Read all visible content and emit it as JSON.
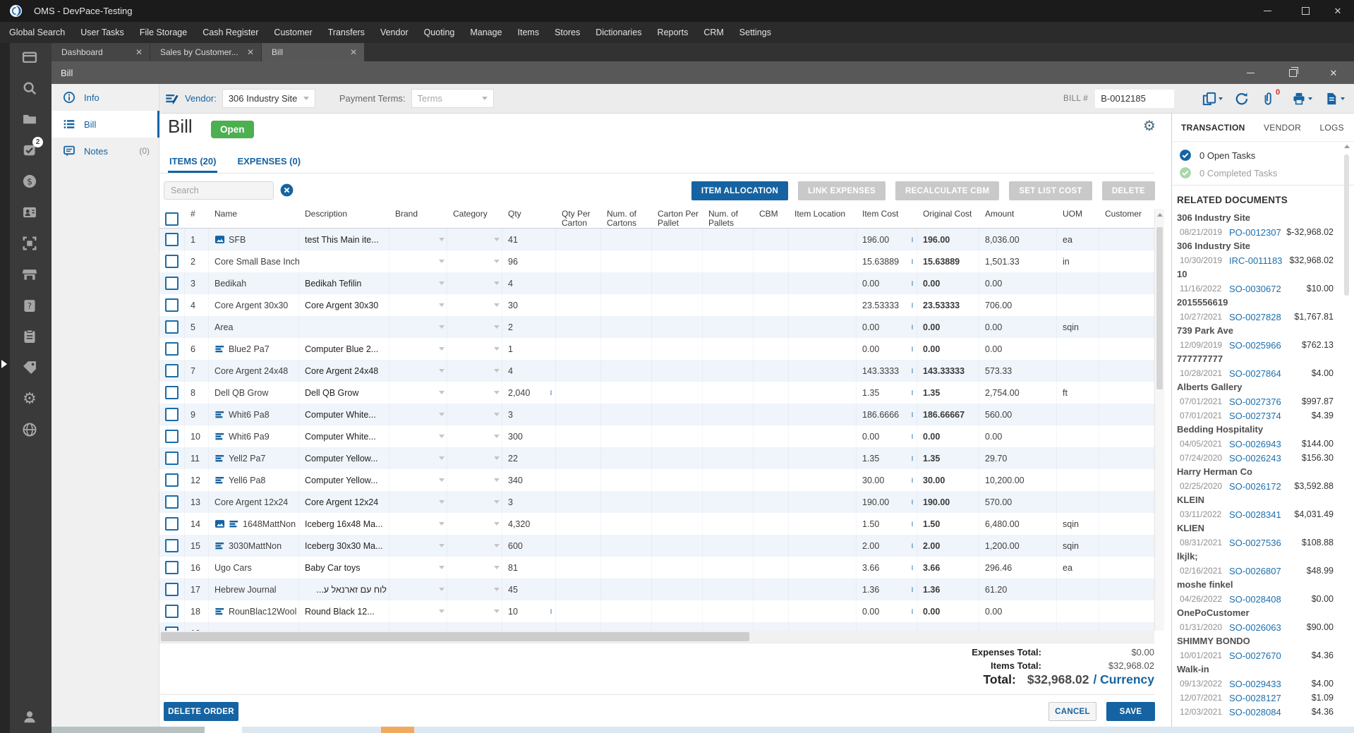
{
  "window": {
    "title": "OMS - DevPace-Testing"
  },
  "menu": [
    "Global Search",
    "User Tasks",
    "File Storage",
    "Cash Register",
    "Customer",
    "Transfers",
    "Vendor",
    "Quoting",
    "Manage",
    "Items",
    "Stores",
    "Dictionaries",
    "Reports",
    "CRM",
    "Settings"
  ],
  "workspace_tabs": [
    {
      "label": "Dashboard",
      "active": false
    },
    {
      "label": "Sales by Customer...",
      "active": false
    },
    {
      "label": "Bill",
      "active": true
    }
  ],
  "rail": {
    "items": [
      {
        "icon": "dashboard"
      },
      {
        "icon": "search"
      },
      {
        "icon": "folder"
      },
      {
        "icon": "tasks",
        "badge": "2"
      },
      {
        "icon": "dollar"
      },
      {
        "icon": "contacts"
      },
      {
        "icon": "scan"
      },
      {
        "icon": "store"
      },
      {
        "icon": "clipboard-question"
      },
      {
        "icon": "clipboard"
      },
      {
        "icon": "tag"
      },
      {
        "icon": "gear"
      },
      {
        "icon": "globe"
      }
    ],
    "bottom_icon": "user"
  },
  "child_window": {
    "title": "Bill"
  },
  "header": {
    "vendor_label": "Vendor:",
    "vendor_value": "306 Industry Site",
    "payment_terms_label": "Payment Terms:",
    "payment_terms_placeholder": "Terms",
    "bill_no_label": "BILL #",
    "bill_no_value": "B-0012185",
    "attachment_count": "0"
  },
  "nav": {
    "items": [
      {
        "icon": "info",
        "label": "Info",
        "active": false,
        "count": ""
      },
      {
        "icon": "bill-list",
        "label": "Bill",
        "active": true,
        "count": ""
      },
      {
        "icon": "notes",
        "label": "Notes",
        "active": false,
        "count": "(0)"
      }
    ]
  },
  "bill": {
    "title": "Bill",
    "status": "Open",
    "tabs": [
      {
        "label": "ITEMS (20)",
        "active": true
      },
      {
        "label": "EXPENSES (0)",
        "active": false
      }
    ],
    "search_placeholder": "Search",
    "actions": [
      {
        "label": "ITEM ALLOCATION",
        "enabled": true
      },
      {
        "label": "LINK EXPENSES",
        "enabled": false
      },
      {
        "label": "RECALCULATE CBM",
        "enabled": false
      },
      {
        "label": "SET LIST COST",
        "enabled": false
      },
      {
        "label": "DELETE",
        "enabled": false
      }
    ]
  },
  "table": {
    "columns": [
      "#",
      "Name",
      "Description",
      "Brand",
      "Category",
      "Qty",
      "Qty Per Carton",
      "Num. of Cartons",
      "Carton Per Pallet",
      "Num. of Pallets",
      "CBM",
      "Item Location",
      "Item Cost",
      "Original Cost",
      "Amount",
      "UOM",
      "Customer"
    ],
    "rows": [
      {
        "num": "1",
        "icons": [
          "image"
        ],
        "name": "SFB",
        "description": "test This Main ite...",
        "qty": "41",
        "qty_menu": false,
        "item_cost": "196.00",
        "original_cost": "196.00",
        "amount": "8,036.00",
        "uom": "ea"
      },
      {
        "num": "2",
        "icons": [],
        "name": "Core Small Base Inch T",
        "description": "",
        "qty": "96",
        "qty_menu": false,
        "item_cost": "15.63889",
        "original_cost": "15.63889",
        "amount": "1,501.33",
        "uom": "in"
      },
      {
        "num": "3",
        "icons": [],
        "name": "Bedikah",
        "description": "Bedikah Tefilin",
        "qty": "4",
        "qty_menu": false,
        "item_cost": "0.00",
        "original_cost": "0.00",
        "amount": "0.00",
        "uom": ""
      },
      {
        "num": "4",
        "icons": [],
        "name": "Core Argent 30x30",
        "description": "Core Argent 30x30",
        "qty": "30",
        "qty_menu": false,
        "item_cost": "23.53333",
        "original_cost": "23.53333",
        "amount": "706.00",
        "uom": ""
      },
      {
        "num": "5",
        "icons": [],
        "name": "Area",
        "description": "",
        "qty": "2",
        "qty_menu": false,
        "item_cost": "0.00",
        "original_cost": "0.00",
        "amount": "0.00",
        "uom": "sqin"
      },
      {
        "num": "6",
        "icons": [
          "stack"
        ],
        "name": "Blue2 Pa7",
        "description": "Computer Blue 2...",
        "qty": "1",
        "qty_menu": false,
        "item_cost": "0.00",
        "original_cost": "0.00",
        "amount": "0.00",
        "uom": ""
      },
      {
        "num": "7",
        "icons": [],
        "name": "Core Argent 24x48",
        "description": "Core Argent 24x48",
        "qty": "4",
        "qty_menu": false,
        "item_cost": "143.3333",
        "original_cost": "143.33333",
        "amount": "573.33",
        "uom": ""
      },
      {
        "num": "8",
        "icons": [],
        "name": "Dell QB Grow",
        "description": "Dell QB Grow",
        "qty": "2,040",
        "qty_menu": true,
        "item_cost": "1.35",
        "original_cost": "1.35",
        "amount": "2,754.00",
        "uom": "ft"
      },
      {
        "num": "9",
        "icons": [
          "stack"
        ],
        "name": "Whit6 Pa8",
        "description": "Computer White...",
        "qty": "3",
        "qty_menu": false,
        "item_cost": "186.6666",
        "original_cost": "186.66667",
        "amount": "560.00",
        "uom": ""
      },
      {
        "num": "10",
        "icons": [
          "stack"
        ],
        "name": "Whit6 Pa9",
        "description": "Computer White...",
        "qty": "300",
        "qty_menu": false,
        "item_cost": "0.00",
        "original_cost": "0.00",
        "amount": "0.00",
        "uom": ""
      },
      {
        "num": "11",
        "icons": [
          "stack"
        ],
        "name": "Yell2 Pa7",
        "description": "Computer Yellow...",
        "qty": "22",
        "qty_menu": false,
        "item_cost": "1.35",
        "original_cost": "1.35",
        "amount": "29.70",
        "uom": ""
      },
      {
        "num": "12",
        "icons": [
          "stack"
        ],
        "name": "Yell6 Pa8",
        "description": "Computer Yellow...",
        "qty": "340",
        "qty_menu": false,
        "item_cost": "30.00",
        "original_cost": "30.00",
        "amount": "10,200.00",
        "uom": ""
      },
      {
        "num": "13",
        "icons": [],
        "name": "Core Argent 12x24",
        "description": "Core Argent 12x24",
        "qty": "3",
        "qty_menu": false,
        "item_cost": "190.00",
        "original_cost": "190.00",
        "amount": "570.00",
        "uom": ""
      },
      {
        "num": "14",
        "icons": [
          "image",
          "stack"
        ],
        "name": "1648MattNon",
        "description": "Iceberg 16x48 Ma...",
        "qty": "4,320",
        "qty_menu": false,
        "item_cost": "1.50",
        "original_cost": "1.50",
        "amount": "6,480.00",
        "uom": "sqin"
      },
      {
        "num": "15",
        "icons": [
          "stack"
        ],
        "name": "3030MattNon",
        "description": "Iceberg 30x30 Ma...",
        "qty": "600",
        "qty_menu": false,
        "item_cost": "2.00",
        "original_cost": "2.00",
        "amount": "1,200.00",
        "uom": "sqin"
      },
      {
        "num": "16",
        "icons": [],
        "name": "Ugo Cars",
        "description": "Baby Car toys",
        "qty": "81",
        "qty_menu": false,
        "item_cost": "3.66",
        "original_cost": "3.66",
        "amount": "296.46",
        "uom": "ea"
      },
      {
        "num": "17",
        "icons": [],
        "name": "Hebrew Journal",
        "description": "לוח עם זארנאל ע...",
        "qty": "45",
        "qty_menu": false,
        "item_cost": "1.36",
        "original_cost": "1.36",
        "amount": "61.20",
        "uom": ""
      },
      {
        "num": "18",
        "icons": [
          "stack"
        ],
        "name": "RounBlac12Wool",
        "description": "Round Black 12...",
        "qty": "10",
        "qty_menu": true,
        "item_cost": "0.00",
        "original_cost": "0.00",
        "amount": "0.00",
        "uom": ""
      }
    ]
  },
  "totals": {
    "expenses_label": "Expenses Total:",
    "expenses_value": "$0.00",
    "items_label": "Items Total:",
    "items_value": "$32,968.02",
    "total_label": "Total:",
    "total_value": "$32,968.02",
    "total_currency": "/ Currency"
  },
  "footer": {
    "delete_order": "DELETE ORDER",
    "cancel": "CANCEL",
    "save": "SAVE"
  },
  "right_panel": {
    "tabs": [
      {
        "label": "TRANSACTION",
        "active": true
      },
      {
        "label": "VENDOR",
        "active": false
      },
      {
        "label": "LOGS",
        "active": false
      }
    ],
    "open_tasks": "0 Open Tasks",
    "completed_tasks": "0 Completed Tasks",
    "related_documents_title": "RELATED DOCUMENTS",
    "documents": [
      {
        "customer": "306 Industry Site",
        "docs": [
          {
            "date": "08/21/2019",
            "number": "PO-0012307",
            "amount": "$-32,968.02"
          }
        ]
      },
      {
        "customer": "306 Industry Site",
        "docs": [
          {
            "date": "10/30/2019",
            "number": "IRC-0011183",
            "amount": "$32,968.02"
          }
        ]
      },
      {
        "customer": "10",
        "docs": [
          {
            "date": "11/16/2022",
            "number": "SO-0030672",
            "amount": "$10.00"
          }
        ]
      },
      {
        "customer": "2015556619",
        "docs": [
          {
            "date": "10/27/2021",
            "number": "SO-0027828",
            "amount": "$1,767.81"
          }
        ]
      },
      {
        "customer": "739 Park Ave",
        "docs": [
          {
            "date": "12/09/2019",
            "number": "SO-0025966",
            "amount": "$762.13"
          }
        ]
      },
      {
        "customer": "777777777",
        "docs": [
          {
            "date": "10/28/2021",
            "number": "SO-0027864",
            "amount": "$4.00"
          }
        ]
      },
      {
        "customer": "Alberts Gallery",
        "docs": [
          {
            "date": "07/01/2021",
            "number": "SO-0027376",
            "amount": "$997.87"
          },
          {
            "date": "07/01/2021",
            "number": "SO-0027374",
            "amount": "$4.39"
          }
        ]
      },
      {
        "customer": "Bedding Hospitality",
        "docs": [
          {
            "date": "04/05/2021",
            "number": "SO-0026943",
            "amount": "$144.00"
          },
          {
            "date": "07/24/2020",
            "number": "SO-0026243",
            "amount": "$156.30"
          }
        ]
      },
      {
        "customer": "Harry Herman Co",
        "docs": [
          {
            "date": "02/25/2020",
            "number": "SO-0026172",
            "amount": "$3,592.88"
          }
        ]
      },
      {
        "customer": "KLEIN",
        "docs": [
          {
            "date": "03/11/2022",
            "number": "SO-0028341",
            "amount": "$4,031.49"
          }
        ]
      },
      {
        "customer": "KLIEN",
        "docs": [
          {
            "date": "08/31/2021",
            "number": "SO-0027536",
            "amount": "$108.88"
          }
        ]
      },
      {
        "customer": "lkjlk;",
        "docs": [
          {
            "date": "02/16/2021",
            "number": "SO-0026807",
            "amount": "$48.99"
          }
        ]
      },
      {
        "customer": "moshe finkel",
        "docs": [
          {
            "date": "04/26/2022",
            "number": "SO-0028408",
            "amount": "$0.00"
          }
        ]
      },
      {
        "customer": "OnePoCustomer",
        "docs": [
          {
            "date": "01/31/2020",
            "number": "SO-0026063",
            "amount": "$90.00"
          }
        ]
      },
      {
        "customer": "SHIMMY BONDO",
        "docs": [
          {
            "date": "10/01/2021",
            "number": "SO-0027670",
            "amount": "$4.36"
          }
        ]
      },
      {
        "customer": "Walk-in",
        "docs": [
          {
            "date": "09/13/2022",
            "number": "SO-0029433",
            "amount": "$4.00"
          },
          {
            "date": "12/07/2021",
            "number": "SO-0028127",
            "amount": "$1.09"
          },
          {
            "date": "12/03/2021",
            "number": "SO-0028084",
            "amount": "$4.36"
          }
        ]
      }
    ]
  },
  "colors": {
    "accent": "#1563a2",
    "open_badge_green": "#4caf50",
    "link_blue": "#1b6fae",
    "attachment_red": "#d32f2f",
    "scroll_orange": "#efaa60"
  }
}
